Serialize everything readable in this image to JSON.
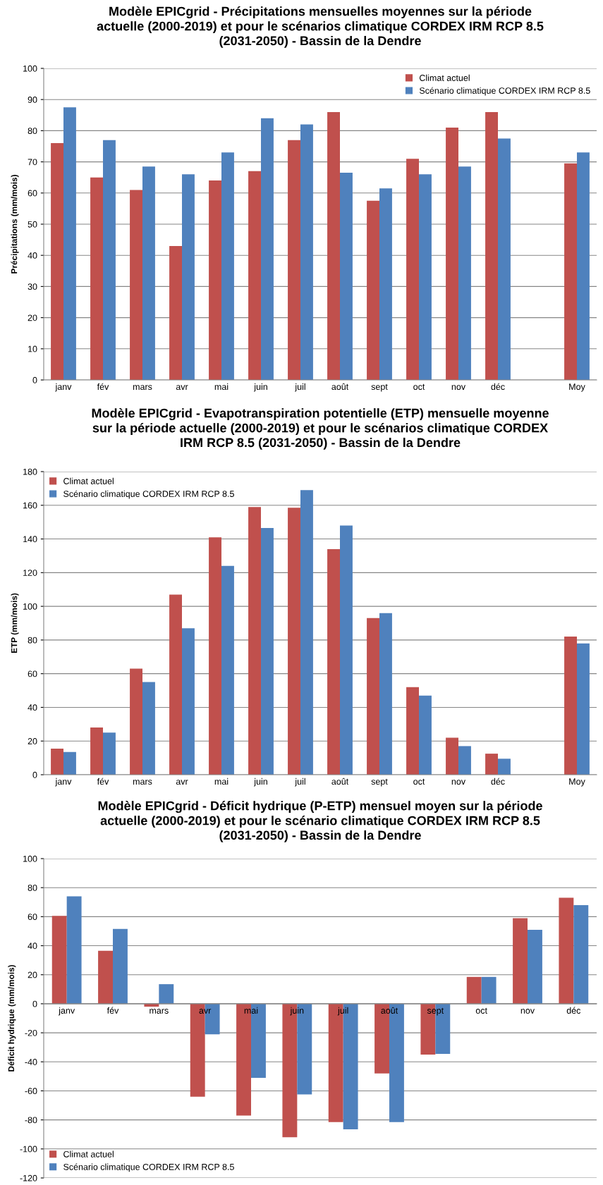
{
  "chart_data": [
    {
      "type": "bar",
      "title": "Modèle EPICgrid - Précipitations mensuelles moyennes sur la période\nactuelle (2000-2019) et pour le scénarios climatique CORDEX IRM RCP 8.5\n(2031-2050) - Bassin de la Dendre",
      "ylabel": "Précipitations (mm/mois)",
      "categories": [
        "janv",
        "fév",
        "mars",
        "avr",
        "mai",
        "juin",
        "juil",
        "août",
        "sept",
        "oct",
        "nov",
        "déc",
        null,
        "Moy"
      ],
      "series": [
        {
          "name": "Climat actuel",
          "color": "#c0504d",
          "values": [
            76,
            65,
            61,
            43,
            64,
            67,
            77,
            86,
            57.5,
            71,
            81,
            86,
            null,
            69.5
          ]
        },
        {
          "name": "Scénario climatique CORDEX IRM RCP 8.5",
          "color": "#4f81bd",
          "values": [
            87.5,
            77,
            68.5,
            66,
            73,
            84,
            82,
            66.5,
            61.5,
            66,
            68.5,
            77.5,
            null,
            73
          ]
        }
      ],
      "ylim": [
        0,
        100
      ],
      "yticks": [
        0,
        10,
        20,
        30,
        40,
        50,
        60,
        70,
        80,
        90,
        100
      ],
      "grid": "y",
      "legend": "top right"
    },
    {
      "type": "bar",
      "title": "Modèle EPICgrid - Evapotranspiration potentielle (ETP) mensuelle moyenne\nsur la période actuelle (2000-2019) et pour le scénarios climatique CORDEX\nIRM RCP 8.5 (2031-2050) - Bassin de la Dendre",
      "ylabel": "ETP (mm/mois)",
      "categories": [
        "janv",
        "fév",
        "mars",
        "avr",
        "mai",
        "juin",
        "juil",
        "août",
        "sept",
        "oct",
        "nov",
        "déc",
        null,
        "Moy"
      ],
      "series": [
        {
          "name": "Climat actuel",
          "color": "#c0504d",
          "values": [
            15.5,
            28,
            63,
            107,
            141,
            159,
            158.5,
            134,
            93,
            52,
            22,
            12.5,
            null,
            82
          ]
        },
        {
          "name": "Scénario climatique CORDEX IRM RCP 8.5",
          "color": "#4f81bd",
          "values": [
            13.5,
            25,
            55,
            87,
            124,
            146.5,
            169,
            148,
            96,
            47,
            17,
            9.5,
            null,
            78
          ]
        }
      ],
      "ylim": [
        0,
        180
      ],
      "yticks": [
        0,
        20,
        40,
        60,
        80,
        100,
        120,
        140,
        160,
        180
      ],
      "grid": "y",
      "legend": "top left"
    },
    {
      "type": "bar",
      "title": "Modèle EPICgrid - Déficit hydrique (P-ETP) mensuel moyen sur la période\nactuelle (2000-2019) et pour le scénario climatique CORDEX IRM RCP 8.5\n(2031-2050) - Bassin de la Dendre",
      "ylabel": "Déficit hydrique (mm/mois)",
      "categories": [
        "janv",
        "fév",
        "mars",
        "avr",
        "mai",
        "juin",
        "juil",
        "août",
        "sept",
        "oct",
        "nov",
        "déc"
      ],
      "series": [
        {
          "name": "Climat actuel",
          "color": "#c0504d",
          "values": [
            60.5,
            36.5,
            -2,
            -64,
            -77,
            -92,
            -81.5,
            -48,
            -35,
            18.5,
            59,
            73
          ]
        },
        {
          "name": "Scénario climatique CORDEX IRM RCP 8.5",
          "color": "#4f81bd",
          "values": [
            74,
            51.5,
            13.5,
            -21,
            -51,
            -62.5,
            -86.5,
            -81.5,
            -34.5,
            18.5,
            51,
            68
          ]
        }
      ],
      "ylim": [
        -120,
        100
      ],
      "yticks": [
        -120,
        -100,
        -80,
        -60,
        -40,
        -20,
        0,
        20,
        40,
        60,
        80,
        100
      ],
      "grid": "y",
      "legend": "bottom left"
    }
  ]
}
